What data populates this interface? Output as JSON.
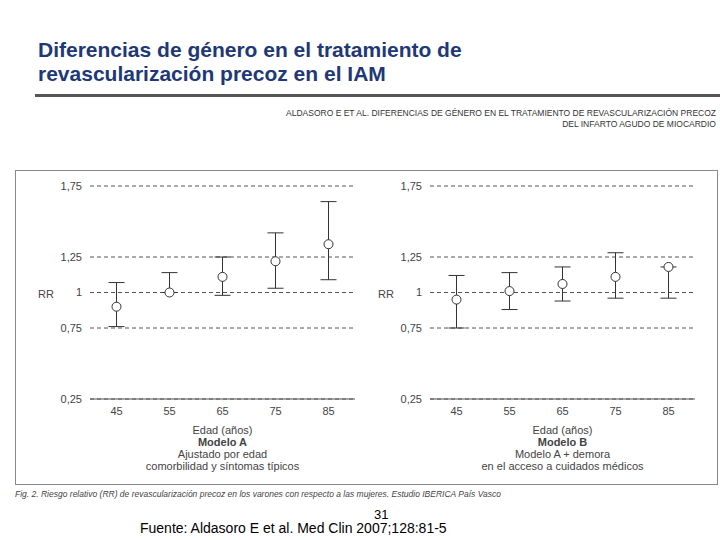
{
  "title": [
    "Diferencias de género en el tratamiento de",
    "revascularización precoz en el IAM"
  ],
  "header": [
    "ALDASORO E ET AL. DIFERENCIAS DE GÉNERO EN EL TRATAMIENTO DE REVASCULARIZACIÓN PRECOZ",
    "DEL INFARTO AGUDO DE MIOCARDIO"
  ],
  "chart_data": [
    {
      "type": "scatter",
      "title": "Modelo A",
      "subtitle": [
        "Ajustado por edad",
        "comorbilidad y síntomas típicos"
      ],
      "x_label": "Edad (años)",
      "y_label": "RR",
      "x": [
        45,
        55,
        65,
        75,
        85
      ],
      "values": [
        0.9,
        1.0,
        1.11,
        1.22,
        1.34
      ],
      "error_low": [
        0.76,
        1.0,
        0.98,
        1.03,
        1.09
      ],
      "error_high": [
        1.07,
        1.14,
        1.25,
        1.42,
        1.64
      ],
      "xlim": [
        40,
        90
      ],
      "xticks": [
        45,
        55,
        65,
        75,
        85
      ],
      "ylim": [
        0.25,
        1.75
      ],
      "yticks": [
        {
          "value": 0.25,
          "label": "0,25"
        },
        {
          "value": 0.75,
          "label": "0,75"
        },
        1,
        {
          "value": 1.25,
          "label": "1,25"
        },
        {
          "value": 1.75,
          "label": "1,75"
        }
      ],
      "grid": true,
      "color": "#333333",
      "marker": "circle"
    },
    {
      "type": "scatter",
      "title": "Modelo B",
      "subtitle": [
        "Modelo A + demora",
        "en el acceso a cuidados médicos"
      ],
      "x_label": "Edad (años)",
      "y_label": "RR",
      "x": [
        45,
        55,
        65,
        75,
        85
      ],
      "values": [
        0.95,
        1.01,
        1.06,
        1.11,
        1.18
      ],
      "error_low": [
        0.75,
        0.88,
        0.94,
        0.96,
        0.96
      ],
      "error_high": [
        1.12,
        1.14,
        1.18,
        1.28,
        1.18
      ],
      "xlim": [
        40,
        90
      ],
      "xticks": [
        45,
        55,
        65,
        75,
        85
      ],
      "ylim": [
        0.25,
        1.75
      ],
      "yticks": [
        {
          "value": 0.25,
          "label": "0,25"
        },
        {
          "value": 0.75,
          "label": "0,75"
        },
        1,
        {
          "value": 1.25,
          "label": "1,25"
        },
        {
          "value": 1.75,
          "label": "1,75"
        }
      ],
      "grid": true,
      "color": "#333333",
      "marker": "circle"
    }
  ],
  "caption": "Fig. 2. Riesgo relativo (RR) de revascularización precoz en los varones con respecto a las mujeres. Estudio IBERICA País Vasco",
  "page": "31",
  "source": "Fuente: Aldasoro E et al. Med Clin 2007;128:81-5"
}
